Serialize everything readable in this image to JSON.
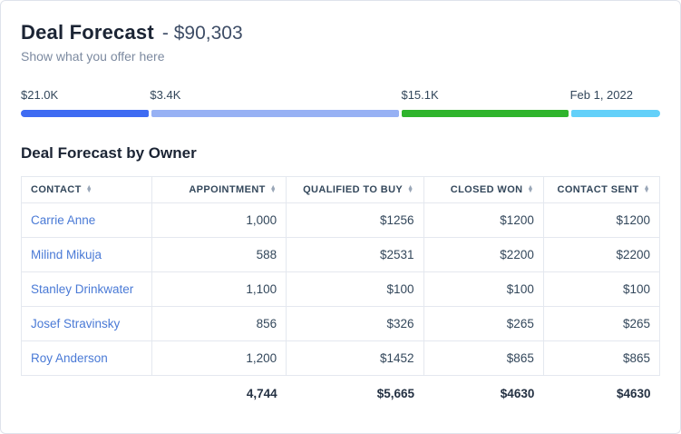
{
  "header": {
    "title": "Deal Forecast",
    "amount": "- $90,303",
    "subtitle": "Show what you offer here"
  },
  "progress": {
    "segments": [
      {
        "label": "$21.0K",
        "color": "#3e6bf2",
        "width_pct": 20.2
      },
      {
        "label": "$3.4K",
        "color": "#97b1f4",
        "width_pct": 39.3
      },
      {
        "label": "$15.1K",
        "color": "#2fb42c",
        "width_pct": 26.4
      },
      {
        "label": "Feb 1, 2022",
        "color": "#63d0f9",
        "width_pct": 14.1
      }
    ]
  },
  "table": {
    "heading": "Deal Forecast by Owner",
    "columns": [
      {
        "label": "Contact"
      },
      {
        "label": "Appointment"
      },
      {
        "label": "Qualified to Buy"
      },
      {
        "label": "Closed Won"
      },
      {
        "label": "Contact Sent"
      }
    ],
    "rows": [
      {
        "contact": "Carrie Anne",
        "appointment": "1,000",
        "qualified_to_buy": "$1256",
        "closed_won": "$1200",
        "contact_sent": "$1200"
      },
      {
        "contact": "Milind Mikuja",
        "appointment": "588",
        "qualified_to_buy": "$2531",
        "closed_won": "$2200",
        "contact_sent": "$2200"
      },
      {
        "contact": "Stanley Drinkwater",
        "appointment": "1,100",
        "qualified_to_buy": "$100",
        "closed_won": "$100",
        "contact_sent": "$100"
      },
      {
        "contact": "Josef Stravinsky",
        "appointment": "856",
        "qualified_to_buy": "$326",
        "closed_won": "$265",
        "contact_sent": "$265"
      },
      {
        "contact": "Roy Anderson",
        "appointment": "1,200",
        "qualified_to_buy": "$1452",
        "closed_won": "$865",
        "contact_sent": "$865"
      }
    ],
    "totals": {
      "contact": "",
      "appointment": "4,744",
      "qualified_to_buy": "$5,665",
      "closed_won": "$4630",
      "contact_sent": "$4630"
    }
  }
}
